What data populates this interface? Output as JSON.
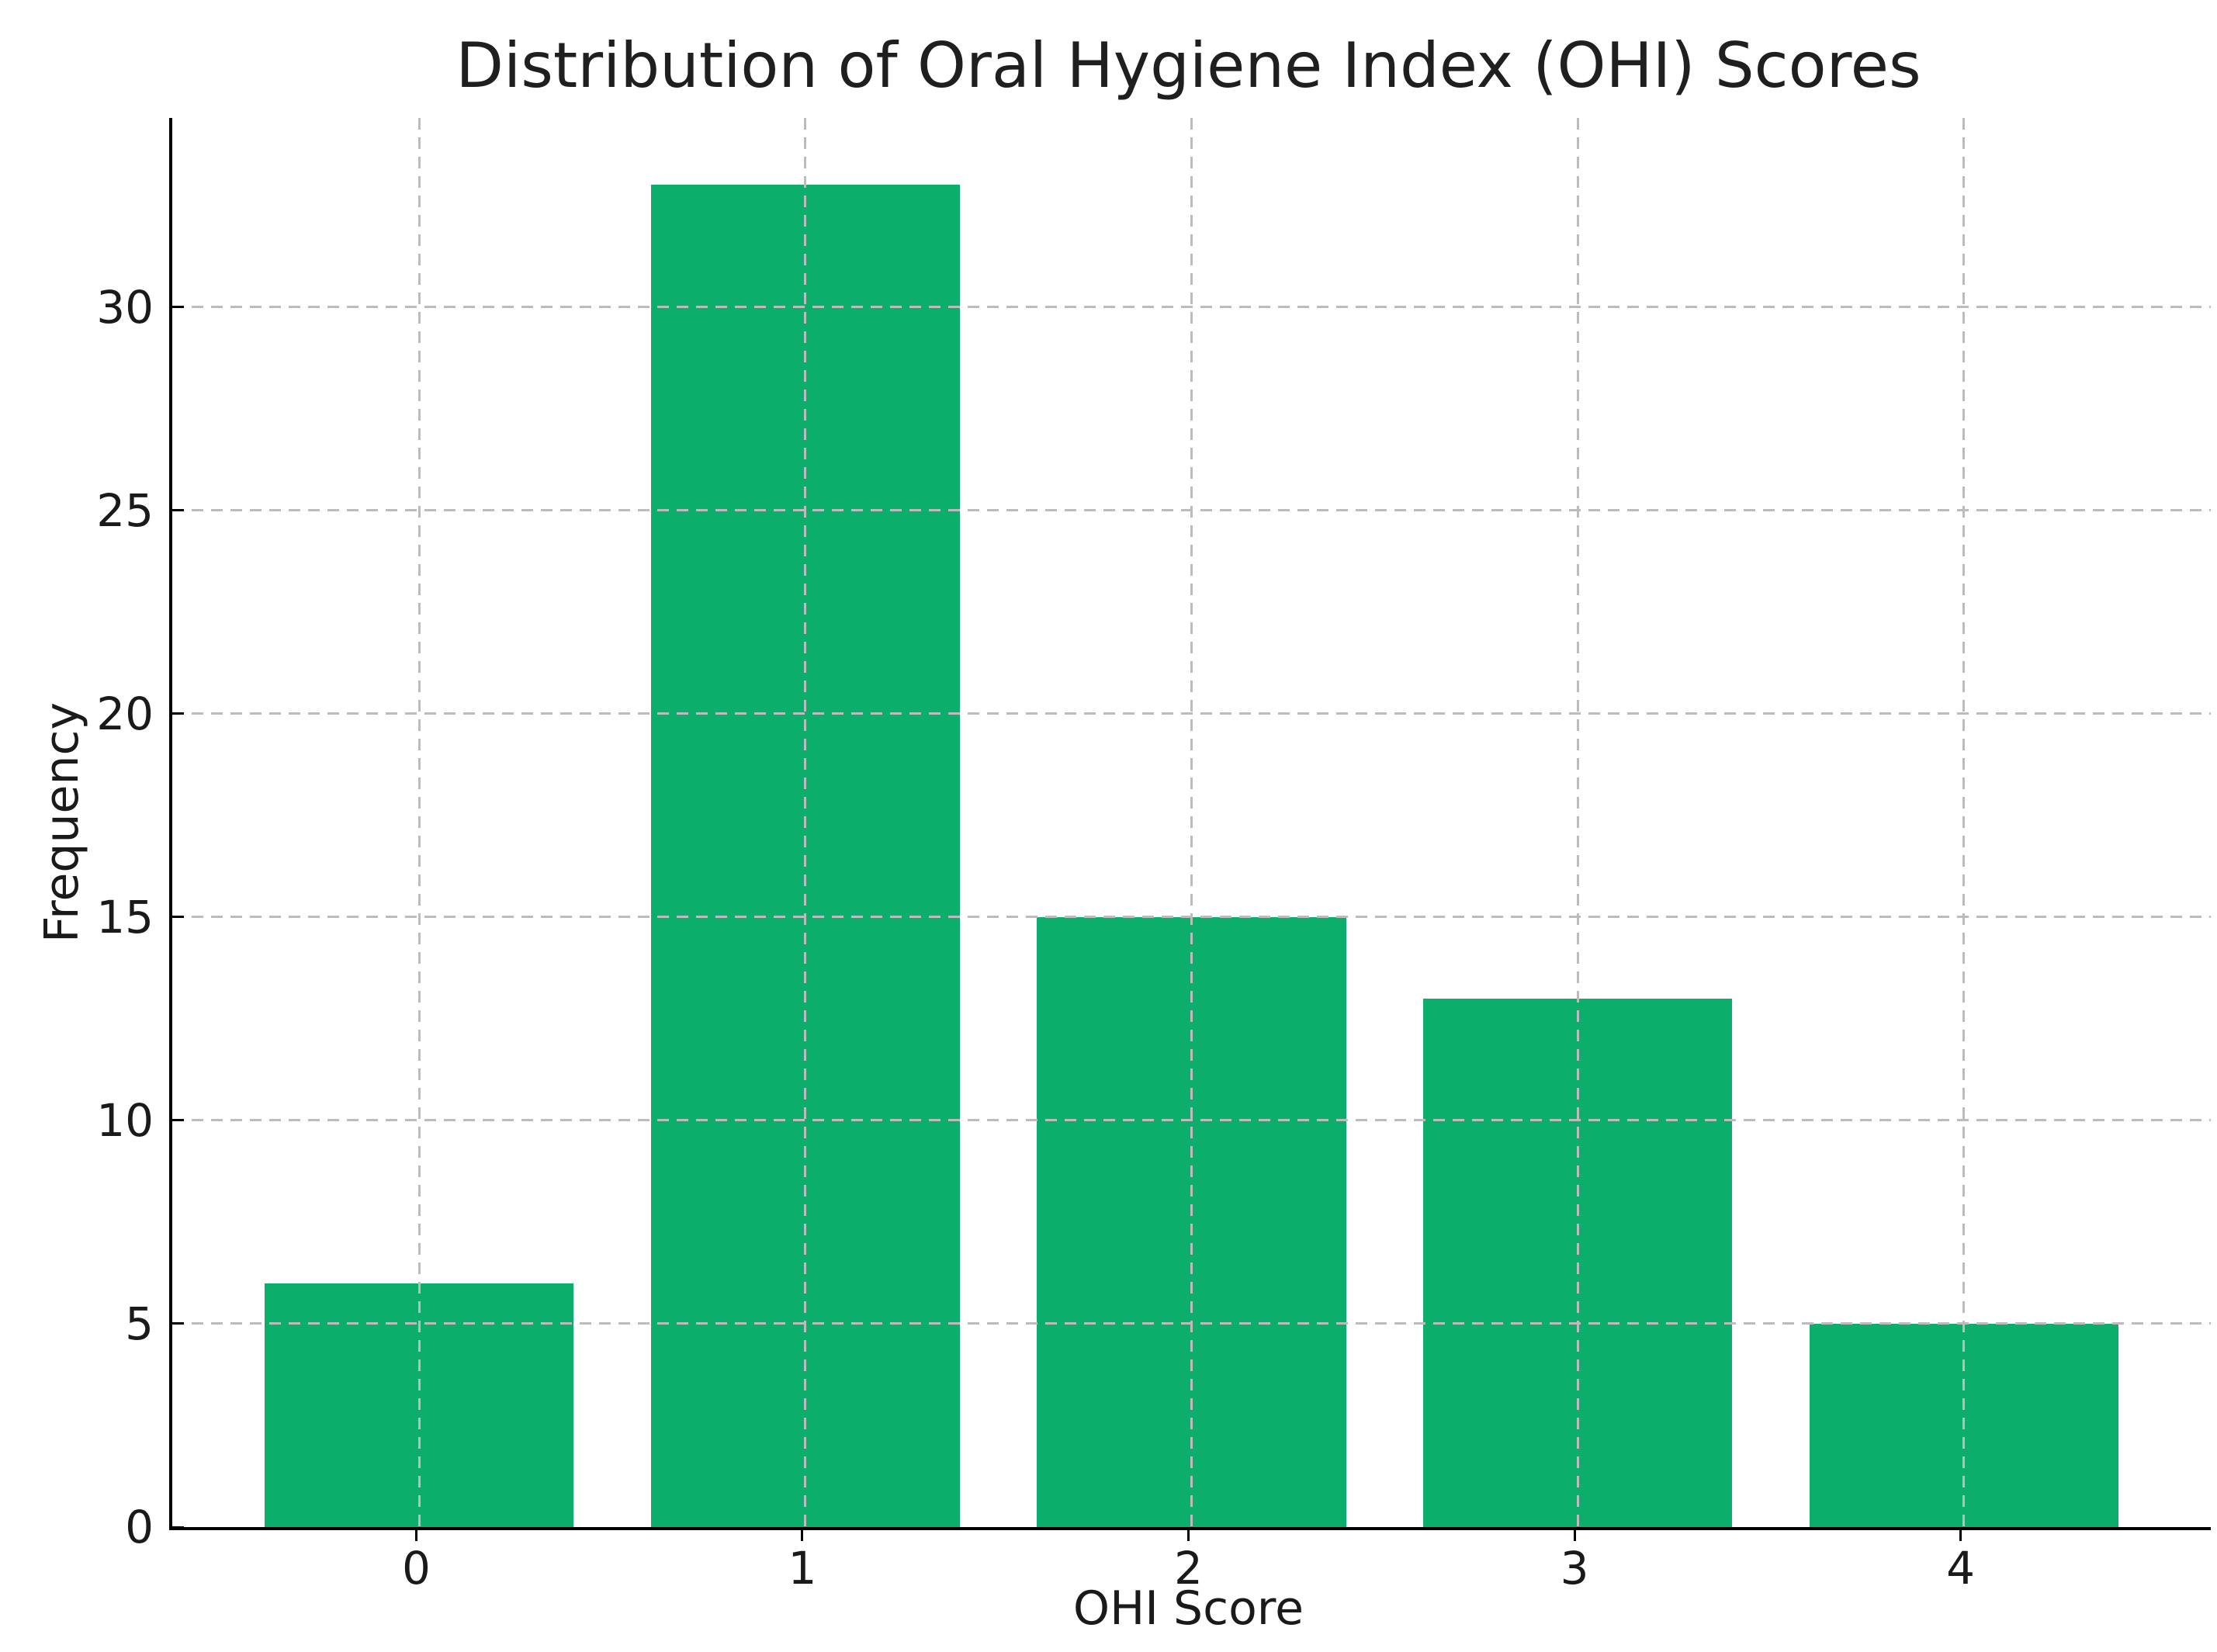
{
  "figure": {
    "background": "#ffffff"
  },
  "chart_data": {
    "type": "bar",
    "title": "Distribution of Oral Hygiene Index (OHI) Scores",
    "xlabel": "OHI Score",
    "ylabel": "Frequency",
    "categories": [
      "0",
      "1",
      "2",
      "3",
      "4"
    ],
    "values": [
      6,
      33,
      15,
      13,
      5
    ],
    "yticks": [
      0,
      5,
      10,
      15,
      20,
      25,
      30
    ],
    "ylim": [
      0,
      34.65
    ],
    "xlim": [
      -0.64,
      4.64
    ],
    "bar_width": 0.8,
    "bar_color": "#0bae6b",
    "grid": true,
    "grid_color": "#bcbcbc",
    "grid_style": "dashed",
    "axis_color": "#000000",
    "text_color": "#1a1a1a",
    "legend": "none"
  }
}
